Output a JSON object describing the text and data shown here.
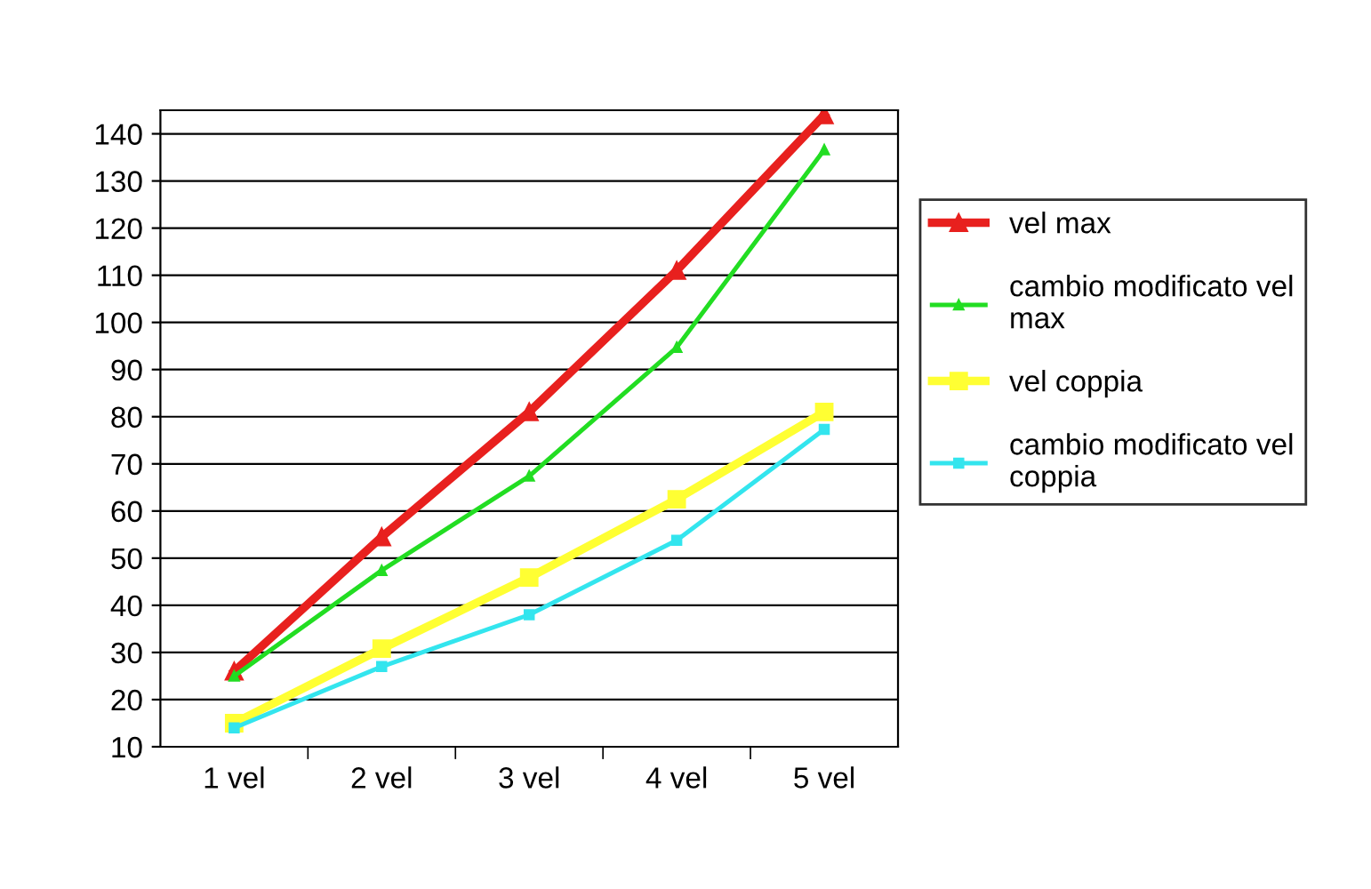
{
  "chart_data": {
    "type": "line",
    "categories": [
      "1 vel",
      "2 vel",
      "3 vel",
      "4 vel",
      "5 vel"
    ],
    "series": [
      {
        "name": "vel max",
        "color": "#e8201e",
        "marker": "triangle",
        "values": [
          26,
          54.5,
          81,
          111,
          144
        ]
      },
      {
        "name": "cambio modificato vel max",
        "color": "#22dd22",
        "marker": "triangle",
        "values": [
          25,
          47.4,
          67.4,
          94.7,
          136.6
        ]
      },
      {
        "name": "vel coppia",
        "color": "#ffff33",
        "marker": "square",
        "values": [
          15,
          30.8,
          45.9,
          62.5,
          81
        ]
      },
      {
        "name": "cambio modificato vel coppia",
        "color": "#33e5ee",
        "marker": "square",
        "values": [
          14,
          27,
          38,
          53.8,
          77.3
        ]
      }
    ],
    "ylim": [
      10,
      145
    ],
    "yticks": [
      10,
      20,
      30,
      40,
      50,
      60,
      70,
      80,
      90,
      100,
      110,
      120,
      130,
      140
    ],
    "grid": "y",
    "legend": "right",
    "line_style": "solid"
  }
}
